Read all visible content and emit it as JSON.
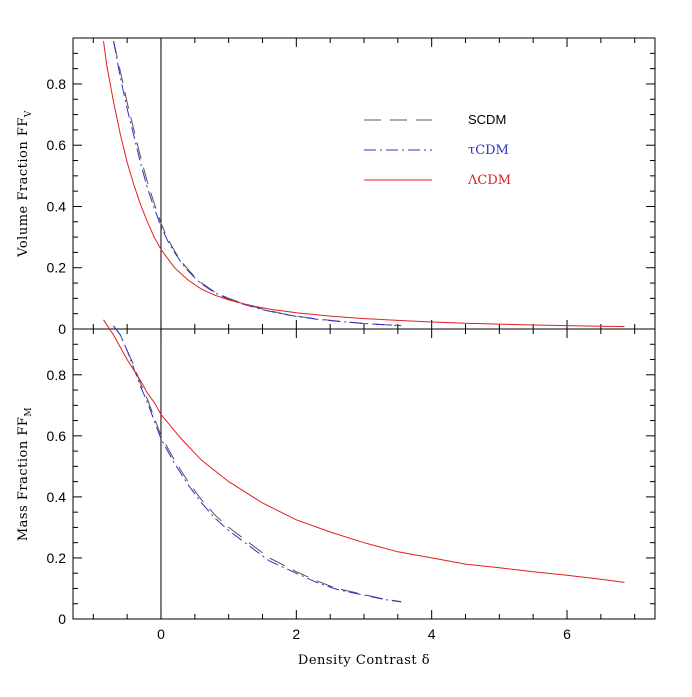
{
  "chart_data": [
    {
      "type": "line",
      "panel": "top",
      "ylabel": "Volume Fraction FF",
      "ylabel_sub": "V",
      "xlim": [
        -1.3,
        7.3
      ],
      "ylim": [
        0,
        0.95
      ],
      "yticks": [
        0,
        0.2,
        0.4,
        0.6,
        0.8
      ],
      "ytick_labels": [
        "0",
        "0.2",
        "0.4",
        "0.6",
        "0.8"
      ],
      "reference_line_x": 0,
      "legend": {
        "position": "top-right",
        "entries": [
          "SCDM",
          "τCDM",
          "ΛCDM"
        ]
      },
      "series": [
        {
          "name": "SCDM",
          "style": "dashed",
          "color": "#555555",
          "x": [
            -0.7,
            -0.6,
            -0.5,
            -0.4,
            -0.3,
            -0.2,
            -0.1,
            0,
            0.1,
            0.2,
            0.3,
            0.4,
            0.5,
            0.6,
            0.8,
            1.0,
            1.2,
            1.5,
            1.8,
            2.0,
            2.3,
            2.6,
            3.0,
            3.3,
            3.55
          ],
          "y": [
            0.94,
            0.84,
            0.74,
            0.65,
            0.56,
            0.48,
            0.41,
            0.345,
            0.295,
            0.255,
            0.22,
            0.195,
            0.17,
            0.15,
            0.12,
            0.1,
            0.085,
            0.065,
            0.05,
            0.042,
            0.033,
            0.026,
            0.018,
            0.014,
            0.011
          ]
        },
        {
          "name": "τCDM",
          "style": "dashdot",
          "color": "#3030cc",
          "x": [
            -0.7,
            -0.6,
            -0.5,
            -0.4,
            -0.3,
            -0.2,
            -0.1,
            0,
            0.1,
            0.2,
            0.3,
            0.4,
            0.5,
            0.6,
            0.8,
            1.0,
            1.2,
            1.5,
            1.8,
            2.0,
            2.3,
            2.6,
            3.0,
            3.3,
            3.55
          ],
          "y": [
            0.94,
            0.82,
            0.72,
            0.63,
            0.54,
            0.46,
            0.395,
            0.335,
            0.288,
            0.25,
            0.217,
            0.19,
            0.167,
            0.147,
            0.118,
            0.097,
            0.082,
            0.063,
            0.049,
            0.041,
            0.032,
            0.025,
            0.018,
            0.014,
            0.011
          ]
        },
        {
          "name": "ΛCDM",
          "style": "solid",
          "color": "#e02020",
          "x": [
            -0.85,
            -0.8,
            -0.7,
            -0.6,
            -0.5,
            -0.4,
            -0.3,
            -0.2,
            -0.1,
            0,
            0.2,
            0.4,
            0.6,
            0.8,
            1.0,
            1.3,
            1.6,
            2.0,
            2.5,
            3.0,
            3.5,
            4.0,
            4.5,
            5.0,
            5.5,
            6.0,
            6.5,
            6.85
          ],
          "y": [
            0.94,
            0.86,
            0.74,
            0.635,
            0.545,
            0.47,
            0.405,
            0.35,
            0.3,
            0.26,
            0.2,
            0.16,
            0.13,
            0.11,
            0.095,
            0.078,
            0.065,
            0.053,
            0.042,
            0.034,
            0.028,
            0.023,
            0.019,
            0.016,
            0.013,
            0.011,
            0.009,
            0.008
          ]
        }
      ]
    },
    {
      "type": "line",
      "panel": "bottom",
      "xlabel": "Density Contrast δ",
      "ylabel": "Mass Fraction FF",
      "ylabel_sub": "M",
      "xlim": [
        -1.3,
        7.3
      ],
      "ylim": [
        0,
        0.95
      ],
      "xticks": [
        0,
        2,
        4,
        6
      ],
      "xtick_labels": [
        "0",
        "2",
        "4",
        "6"
      ],
      "yticks": [
        0,
        0.2,
        0.4,
        0.6,
        0.8
      ],
      "ytick_labels": [
        "0",
        "0.2",
        "0.4",
        "0.6",
        "0.8"
      ],
      "reference_line_x": 0,
      "series": [
        {
          "name": "SCDM",
          "style": "dashed",
          "color": "#555555",
          "x": [
            -0.7,
            -0.6,
            -0.5,
            -0.4,
            -0.3,
            -0.2,
            -0.1,
            0,
            0.2,
            0.4,
            0.6,
            0.8,
            1.0,
            1.3,
            1.6,
            2.0,
            2.3,
            2.6,
            3.0,
            3.3,
            3.55
          ],
          "y": [
            0.96,
            0.93,
            0.88,
            0.83,
            0.77,
            0.72,
            0.66,
            0.6,
            0.52,
            0.45,
            0.39,
            0.34,
            0.3,
            0.25,
            0.2,
            0.155,
            0.125,
            0.1,
            0.08,
            0.065,
            0.057
          ]
        },
        {
          "name": "τCDM",
          "style": "dashdot",
          "color": "#3030cc",
          "x": [
            -0.7,
            -0.6,
            -0.5,
            -0.4,
            -0.3,
            -0.2,
            -0.1,
            0,
            0.2,
            0.4,
            0.6,
            0.8,
            1.0,
            1.3,
            1.6,
            2.0,
            2.3,
            2.6,
            3.0,
            3.3,
            3.55
          ],
          "y": [
            0.96,
            0.93,
            0.88,
            0.82,
            0.76,
            0.71,
            0.65,
            0.59,
            0.51,
            0.44,
            0.38,
            0.33,
            0.29,
            0.24,
            0.19,
            0.15,
            0.12,
            0.097,
            0.078,
            0.064,
            0.056
          ]
        },
        {
          "name": "ΛCDM",
          "style": "solid",
          "color": "#e02020",
          "x": [
            -0.85,
            -0.7,
            -0.5,
            -0.3,
            -0.2,
            -0.1,
            0,
            0.3,
            0.6,
            1.0,
            1.5,
            2.0,
            2.5,
            3.0,
            3.5,
            4.0,
            4.5,
            5.0,
            5.5,
            6.0,
            6.5,
            6.85
          ],
          "y": [
            0.98,
            0.93,
            0.85,
            0.78,
            0.74,
            0.71,
            0.67,
            0.59,
            0.52,
            0.45,
            0.38,
            0.325,
            0.285,
            0.25,
            0.22,
            0.2,
            0.18,
            0.168,
            0.155,
            0.143,
            0.13,
            0.12
          ]
        }
      ]
    }
  ]
}
